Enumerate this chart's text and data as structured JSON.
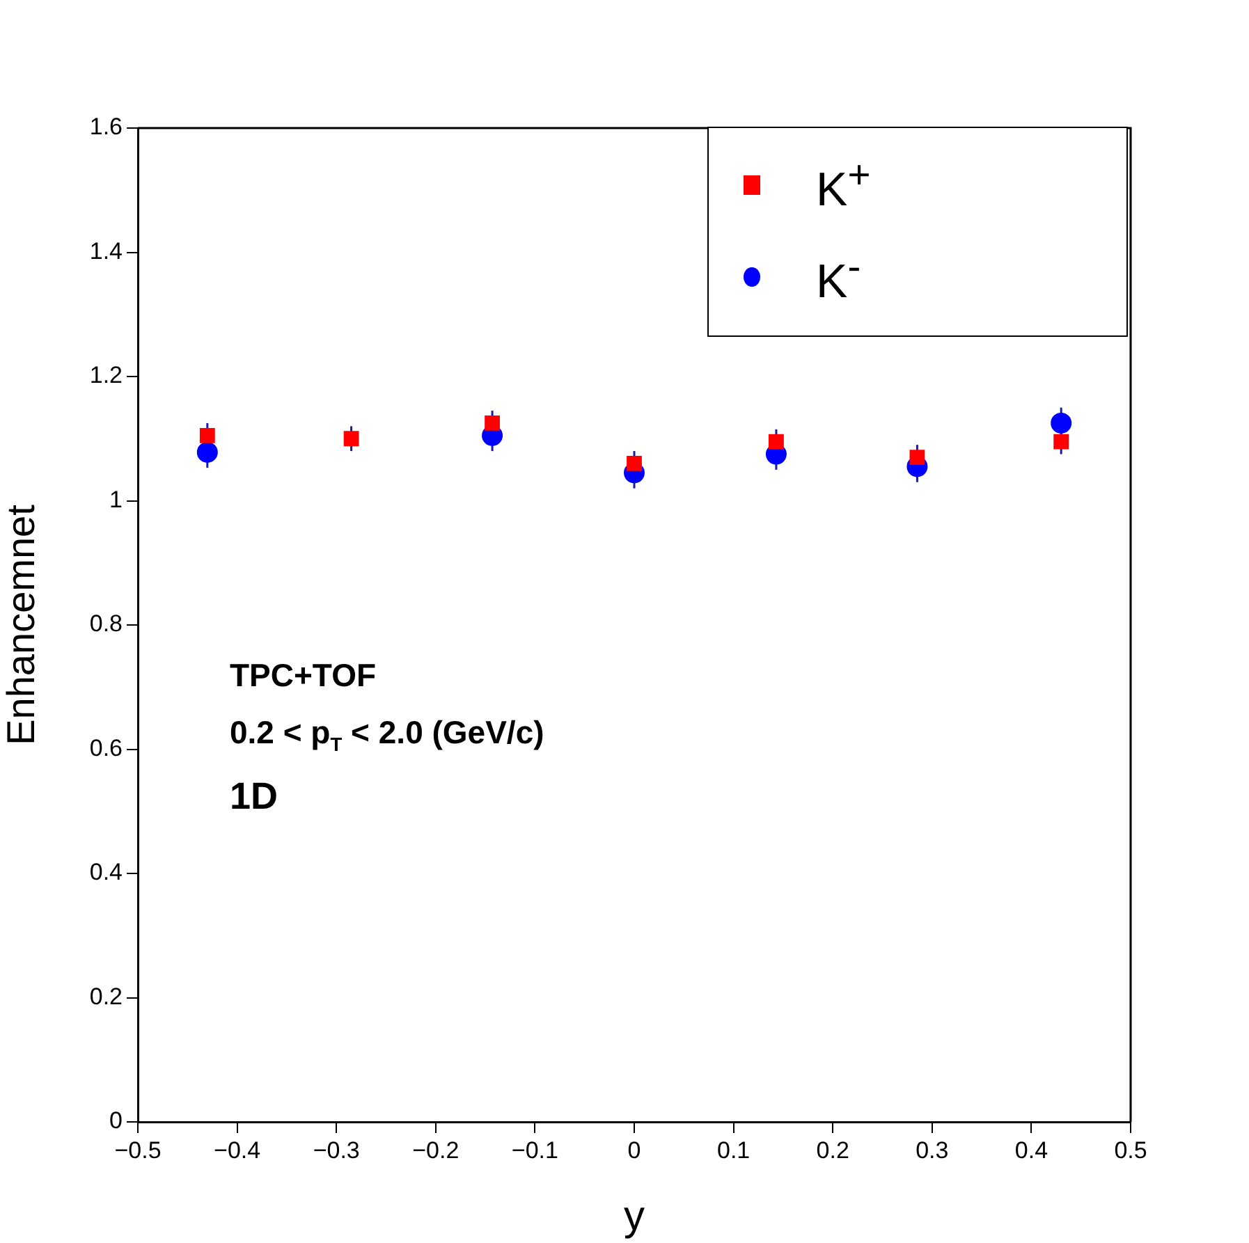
{
  "chart_data": {
    "type": "scatter",
    "xlabel": "y",
    "ylabel": "Enhancemnet",
    "x": [
      -0.43,
      -0.285,
      -0.143,
      0,
      0.143,
      0.285,
      0.43
    ],
    "series": [
      {
        "name": "K$^{+}$",
        "color": "#ff0000",
        "marker": "square",
        "values": [
          1.105,
          1.1,
          1.125,
          1.06,
          1.095,
          1.07,
          1.095
        ],
        "errors": [
          0.02,
          0.02,
          0.02,
          0.02,
          0.02,
          0.02,
          0.02
        ]
      },
      {
        "name": "K$^{-}$",
        "color": "#0000ff",
        "marker": "circle",
        "values": [
          1.078,
          null,
          1.105,
          1.045,
          1.075,
          1.055,
          1.125
        ],
        "errors": [
          0.025,
          null,
          0.025,
          0.025,
          0.025,
          0.025,
          0.025
        ]
      }
    ],
    "xlim": [
      -0.5,
      0.5
    ],
    "xticks": [
      {
        "value": -0.5,
        "label": "−0.5"
      },
      {
        "value": -0.4,
        "label": "−0.4"
      },
      {
        "value": -0.3,
        "label": "−0.3"
      },
      {
        "value": -0.2,
        "label": "−0.2"
      },
      {
        "value": -0.1,
        "label": "−0.1"
      },
      0,
      0.1,
      0.2,
      0.3,
      0.4,
      0.5
    ],
    "ylim": [
      0,
      1.6
    ],
    "yticks": [
      0,
      0.2,
      0.4,
      0.6,
      0.8,
      1,
      1.2,
      1.4,
      1.6
    ],
    "legend": "top right",
    "annotations": [
      "TPC+TOF",
      "0.2 < p$_{T}$ < 2.0 (GeV/c)",
      "1D"
    ]
  }
}
